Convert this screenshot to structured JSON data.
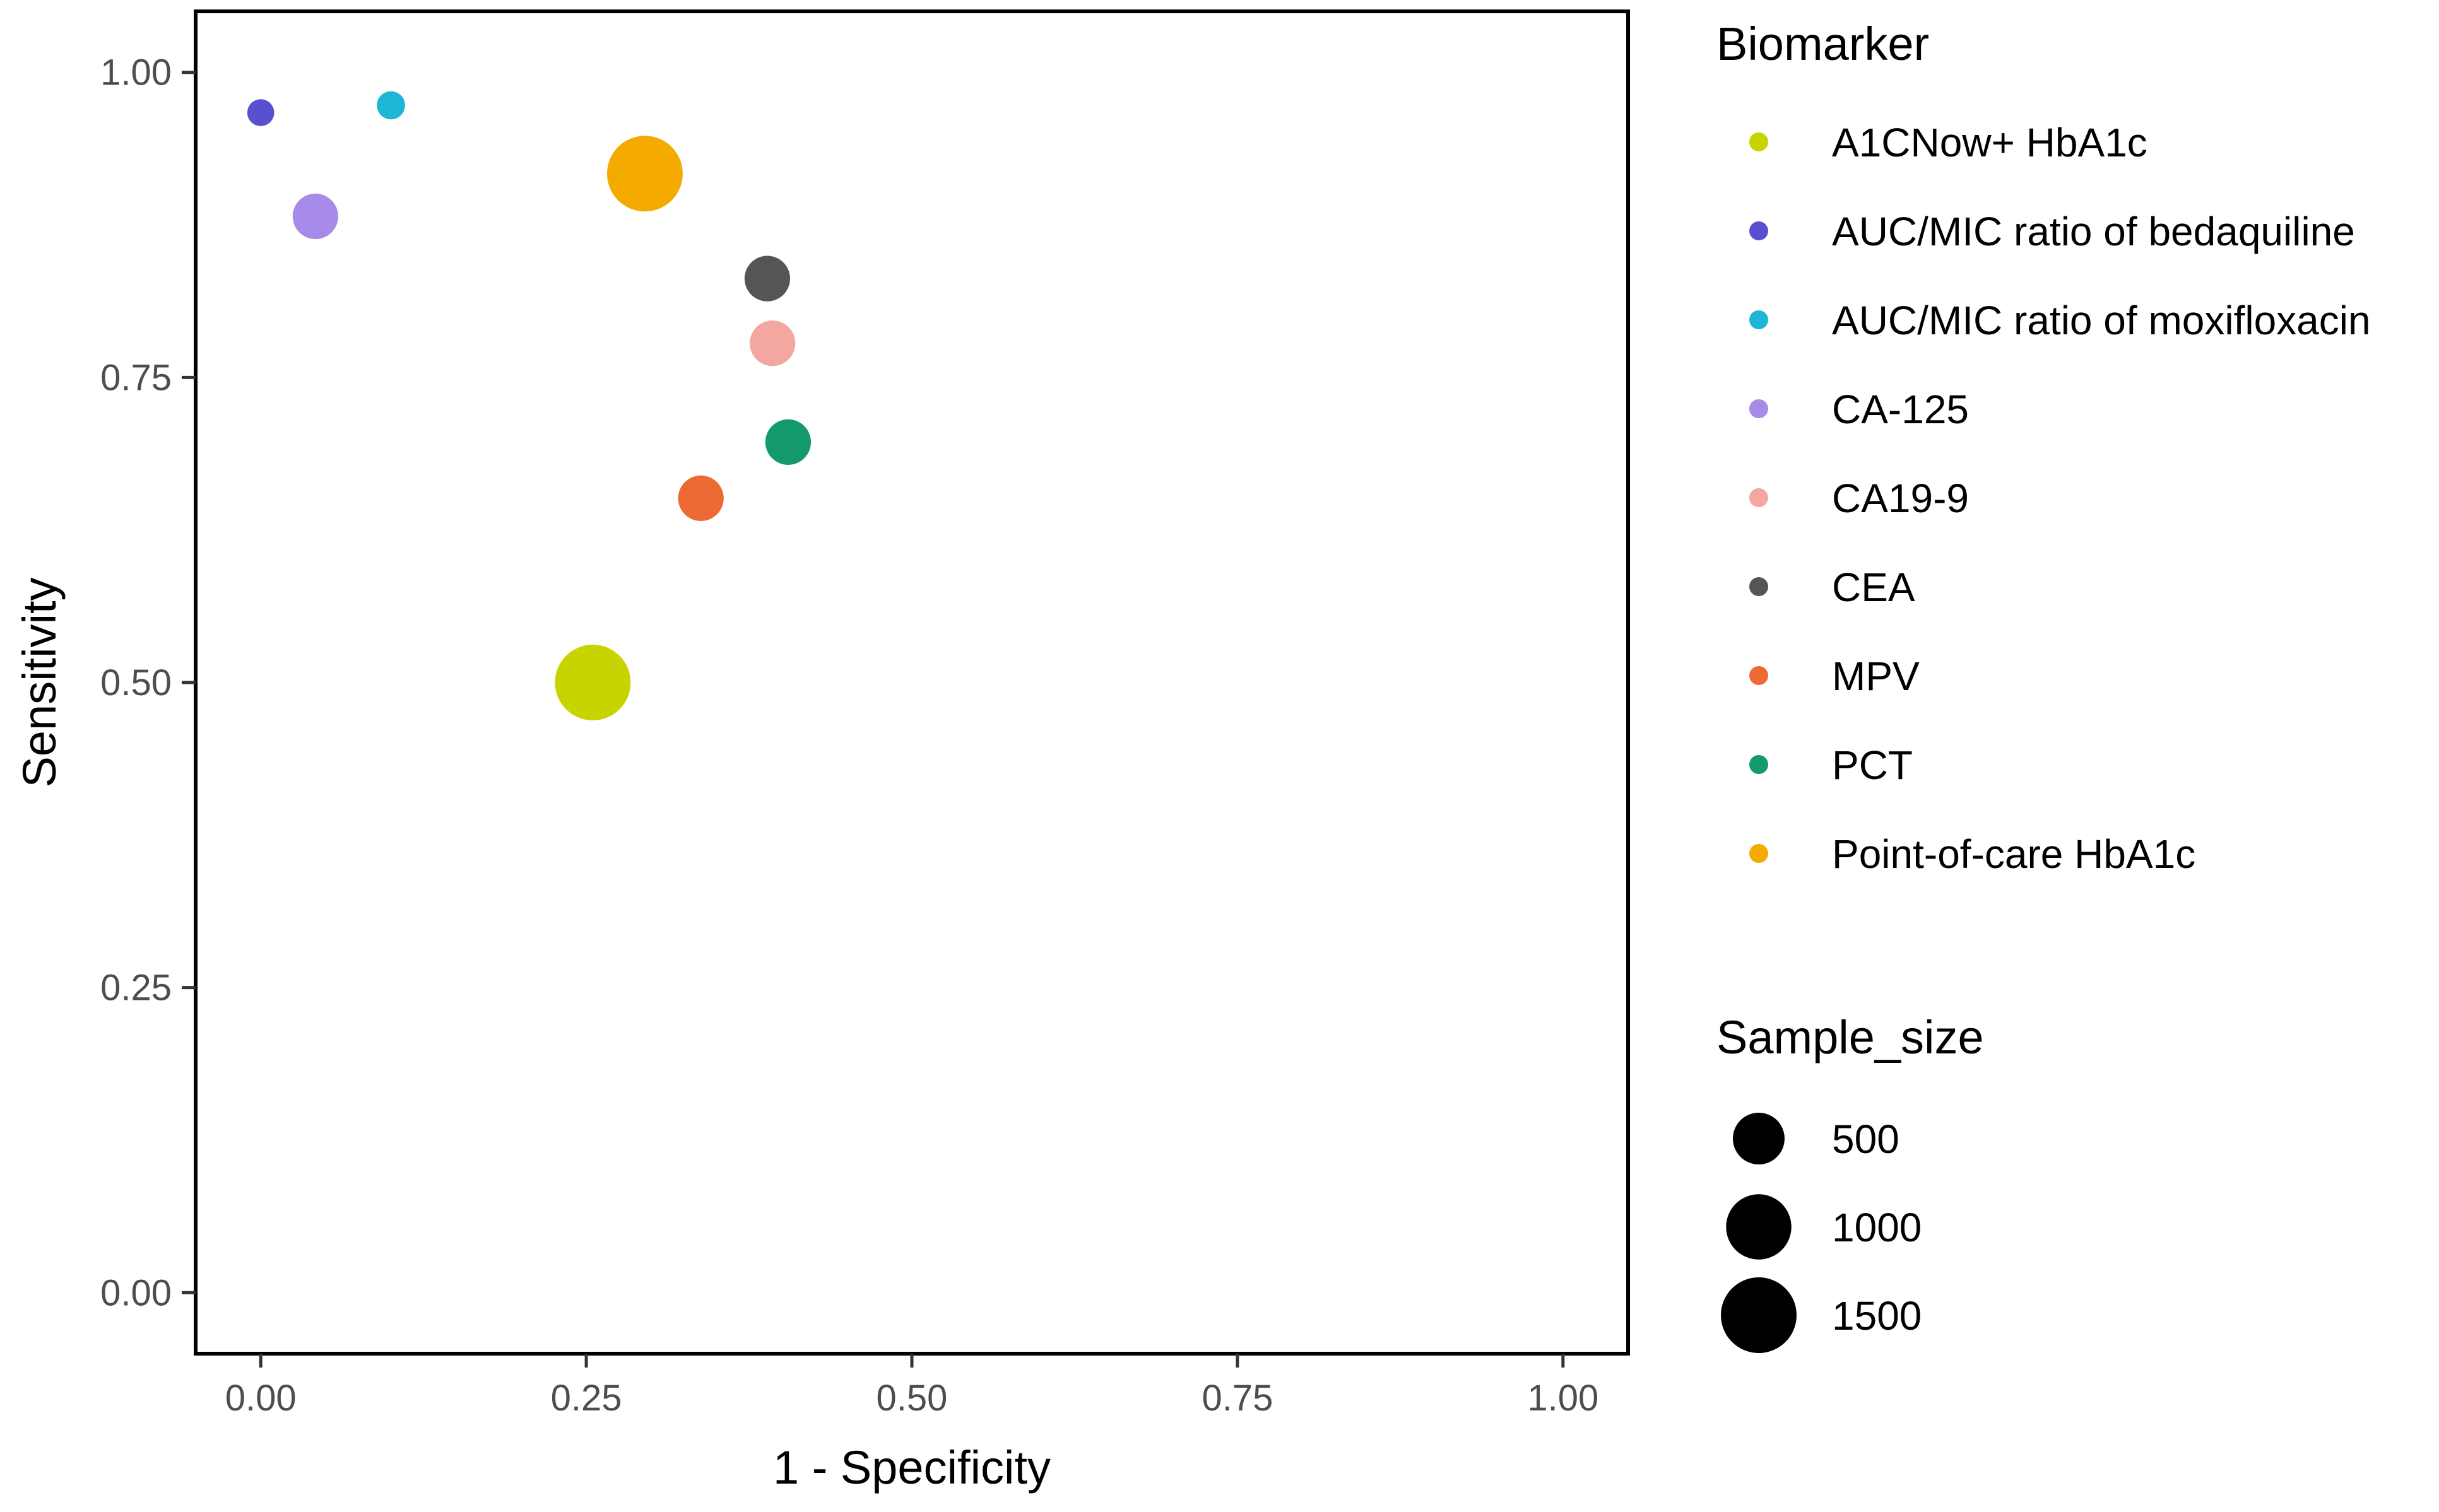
{
  "chart_data": {
    "type": "scatter",
    "title": "",
    "xlabel": "1 - Specificity",
    "ylabel": "Sensitivity",
    "xlim": [
      -0.05,
      1.05
    ],
    "ylim": [
      -0.05,
      1.05
    ],
    "x_ticks": [
      0,
      0.25,
      0.5,
      0.75,
      1.0
    ],
    "x_tick_labels": [
      "0.00",
      "0.25",
      "0.50",
      "0.75",
      "1.00"
    ],
    "y_ticks": [
      0,
      0.25,
      0.5,
      0.75,
      1.0
    ],
    "y_tick_labels": [
      "0.00",
      "0.25",
      "0.50",
      "0.75",
      "1.00"
    ],
    "grid": false,
    "legend_position": "right",
    "color_legend": {
      "title": "Biomarker",
      "entries": [
        {
          "label": "A1CNow+ HbA1c",
          "color": "#c8d400"
        },
        {
          "label": "AUC/MIC ratio of bedaquiline",
          "color": "#5a4fcf"
        },
        {
          "label": "AUC/MIC ratio of moxifloxacin",
          "color": "#1fb5d4"
        },
        {
          "label": "CA-125",
          "color": "#a78be8"
        },
        {
          "label": "CA19-9",
          "color": "#f4a6a0"
        },
        {
          "label": "CEA",
          "color": "#555555"
        },
        {
          "label": "MPV",
          "color": "#ee6a35"
        },
        {
          "label": "PCT",
          "color": "#14996a"
        },
        {
          "label": "Point-of-care HbA1c",
          "color": "#f5aa00"
        }
      ]
    },
    "size_legend": {
      "title": "Sample_size",
      "entries": [
        {
          "label": "500",
          "value": 500
        },
        {
          "label": "1000",
          "value": 1000
        },
        {
          "label": "1500",
          "value": 1500
        }
      ]
    },
    "points": [
      {
        "biomarker": "A1CNow+ HbA1c",
        "x": 0.255,
        "y": 0.5,
        "sample_size": 1500
      },
      {
        "biomarker": "AUC/MIC ratio of bedaquiline",
        "x": 0.0,
        "y": 0.967,
        "sample_size": 30
      },
      {
        "biomarker": "AUC/MIC ratio of moxifloxacin",
        "x": 0.1,
        "y": 0.973,
        "sample_size": 40
      },
      {
        "biomarker": "CA-125",
        "x": 0.042,
        "y": 0.882,
        "sample_size": 330
      },
      {
        "biomarker": "CA19-9",
        "x": 0.393,
        "y": 0.778,
        "sample_size": 330
      },
      {
        "biomarker": "CEA",
        "x": 0.389,
        "y": 0.831,
        "sample_size": 330
      },
      {
        "biomarker": "MPV",
        "x": 0.338,
        "y": 0.651,
        "sample_size": 330
      },
      {
        "biomarker": "PCT",
        "x": 0.405,
        "y": 0.697,
        "sample_size": 330
      },
      {
        "biomarker": "Point-of-care HbA1c",
        "x": 0.295,
        "y": 0.917,
        "sample_size": 1500
      }
    ]
  }
}
